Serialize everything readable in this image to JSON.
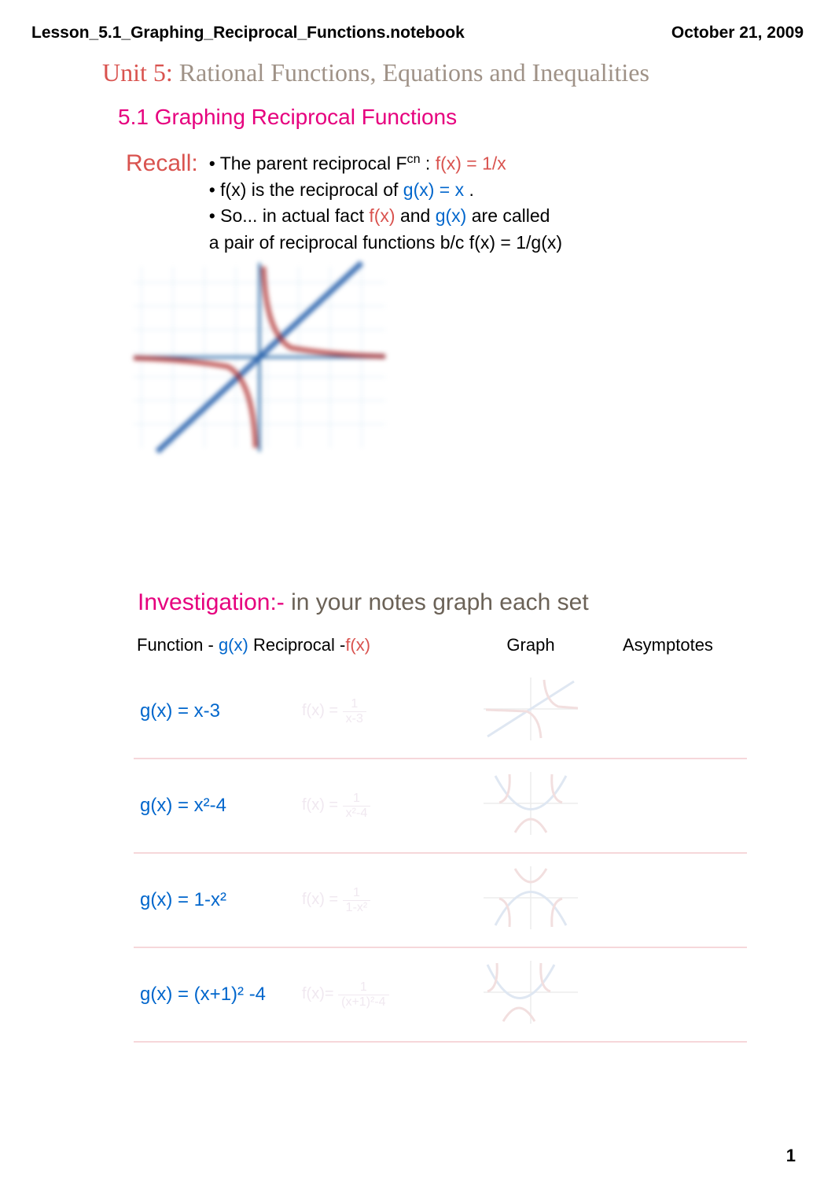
{
  "header": {
    "filename": "Lesson_5.1_Graphing_Reciprocal_Functions.notebook",
    "date": "October 21, 2009"
  },
  "colors": {
    "unit_prefix": "#d9534f",
    "unit_rest": "#9f9287",
    "section": "#e6007e",
    "recall": "#d9534f",
    "fx": "#d9534f",
    "gx": "#0066cc",
    "investigation": "#e6007e",
    "invest_rest": "#6b6257",
    "text": "#000000",
    "faded": "#f0e8f0",
    "row_sep": "#f6d7da",
    "graph_grid": "#d8e8f5",
    "graph_axis": "#1a1a1a",
    "graph_line_blue": "#1e5aa8",
    "graph_line_red": "#b03030"
  },
  "unit": {
    "prefix": "Unit 5:",
    "rest": " Rational Functions, Equations and Inequalities"
  },
  "section": "5.1 Graphing Reciprocal Functions",
  "recall": {
    "label": "Recall:",
    "line1a": "•   The parent reciprocal F",
    "line1sup": "cn",
    "line1b": " : ",
    "line1fx": "f(x) = 1/x",
    "line2a": "•   f(x) is the reciprocal of    ",
    "line2gx": "g(x) = x",
    "line2b": " .",
    "line3a": "•  So... in actual fact  ",
    "line3fx": "f(x)",
    "line3b": " and ",
    "line3gx": "g(x)",
    "line3c": "  are called",
    "line4": "a pair of reciprocal functions b/c     f(x) = 1/g(x)"
  },
  "investigation": {
    "label": "Investigation:-",
    "rest": " in your notes graph each set"
  },
  "table": {
    "headers": {
      "col1a": "Function - ",
      "col1gx": "g(x)",
      "col2a": " Reciprocal -",
      "col2fx": "f(x)",
      "col3": "Graph",
      "col4": "Asymptotes"
    },
    "rows": [
      {
        "g": "g(x) = x-3",
        "f_pre": "f(x) = ",
        "f_num": "1",
        "f_den": "x-3"
      },
      {
        "g": "g(x) = x²-4",
        "f_pre": "f(x) = ",
        "f_num": "1",
        "f_den": "x²-4"
      },
      {
        "g": "g(x) = 1-x²",
        "f_pre": "f(x) = ",
        "f_num": "1",
        "f_den": "1-x²"
      },
      {
        "g": "g(x) = (x+1)² -4",
        "f_pre": "f(x)= ",
        "f_num": "1",
        "f_den": "(x+1)²-4"
      }
    ]
  },
  "page_number": "1"
}
